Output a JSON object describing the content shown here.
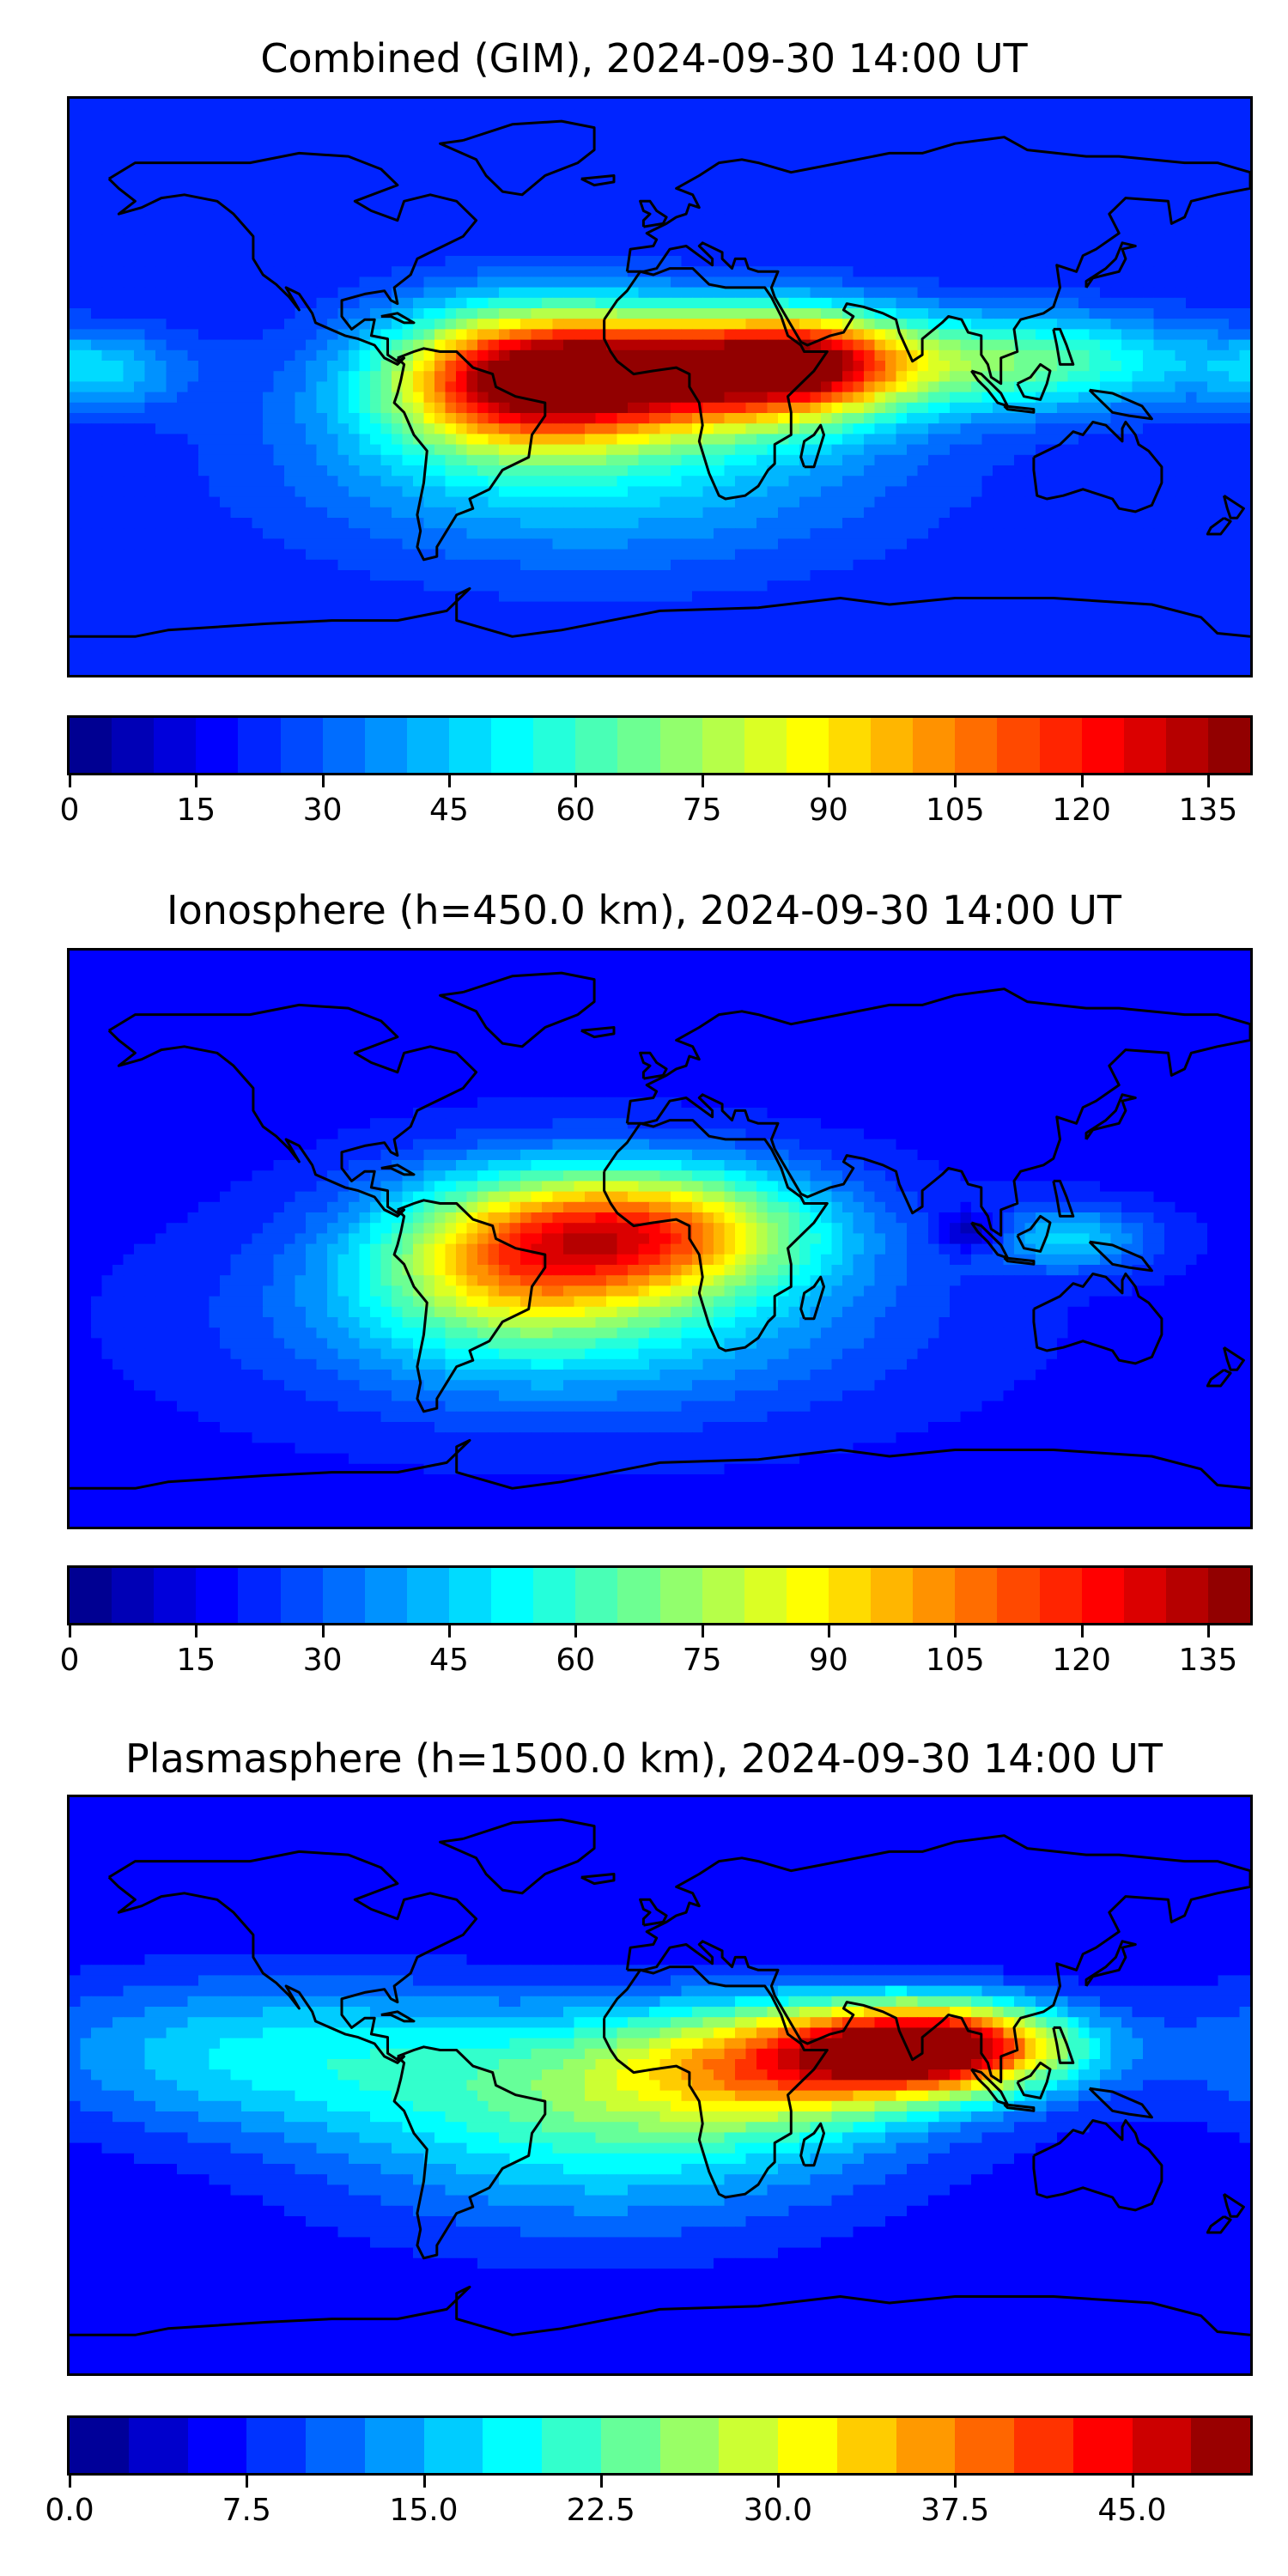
{
  "panels": [
    {
      "title": "Combined (GIM), 2024-09-30 14:00 UT",
      "colorbar": {
        "min": 0,
        "max": 140,
        "levels": 28,
        "tick_labels": [
          "0",
          "15",
          "30",
          "45",
          "60",
          "75",
          "90",
          "105",
          "120",
          "135"
        ],
        "tick_values": [
          0,
          15,
          30,
          45,
          60,
          75,
          90,
          105,
          120,
          135
        ]
      },
      "field": {
        "background": 20,
        "blobs": [
          {
            "lon": 5,
            "lat": 5,
            "rlon": 55,
            "rlat": 18,
            "amp": 95
          },
          {
            "lon": -45,
            "lat": 2,
            "rlon": 40,
            "rlat": 22,
            "amp": 75
          },
          {
            "lon": 45,
            "lat": 8,
            "rlon": 30,
            "rlat": 15,
            "amp": 60
          },
          {
            "lon": 110,
            "lat": 8,
            "rlon": 55,
            "rlat": 15,
            "amp": 45
          },
          {
            "lon": -20,
            "lat": -20,
            "rlon": 90,
            "rlat": 35,
            "amp": 30
          },
          {
            "lon": -170,
            "lat": 5,
            "rlon": 25,
            "rlat": 12,
            "amp": 22
          }
        ]
      }
    },
    {
      "title": "Ionosphere  (h=450.0 km), 2024-09-30 14:00 UT",
      "colorbar": {
        "min": 0,
        "max": 140,
        "levels": 28,
        "tick_labels": [
          "0",
          "15",
          "30",
          "45",
          "60",
          "75",
          "90",
          "105",
          "120",
          "135"
        ],
        "tick_values": [
          0,
          15,
          30,
          45,
          60,
          75,
          90,
          105,
          120,
          135
        ]
      },
      "field": {
        "background": 18,
        "blobs": [
          {
            "lon": 0,
            "lat": 3,
            "rlon": 50,
            "rlat": 20,
            "amp": 72
          },
          {
            "lon": -45,
            "lat": -5,
            "rlon": 45,
            "rlat": 25,
            "amp": 55
          },
          {
            "lon": -25,
            "lat": -25,
            "rlon": 90,
            "rlat": 30,
            "amp": 30
          },
          {
            "lon": 125,
            "lat": 0,
            "rlon": 25,
            "rlat": 10,
            "amp": 28
          },
          {
            "lon": 95,
            "lat": 2,
            "rlon": 10,
            "rlat": 6,
            "amp": -20
          }
        ]
      }
    },
    {
      "title": "Plasmasphere (h=1500.0 km), 2024-09-30 14:00 UT",
      "colorbar": {
        "min": 0,
        "max": 50,
        "levels": 20,
        "tick_labels": [
          "0.0",
          "7.5",
          "15.0",
          "22.5",
          "30.0",
          "37.5",
          "45.0"
        ],
        "tick_values": [
          0,
          7.5,
          15,
          22.5,
          30,
          37.5,
          45
        ]
      },
      "field": {
        "background": 5,
        "blobs": [
          {
            "lon": 85,
            "lat": 12,
            "rlon": 40,
            "rlat": 14,
            "amp": 40
          },
          {
            "lon": 40,
            "lat": 8,
            "rlon": 50,
            "rlat": 18,
            "amp": 20
          },
          {
            "lon": 0,
            "lat": 0,
            "rlon": 80,
            "rlat": 25,
            "amp": 14
          },
          {
            "lon": -120,
            "lat": 10,
            "rlon": 80,
            "rlat": 25,
            "amp": 12
          },
          {
            "lon": -20,
            "lat": -25,
            "rlon": 90,
            "rlat": 30,
            "amp": 8
          }
        ]
      }
    }
  ]
}
